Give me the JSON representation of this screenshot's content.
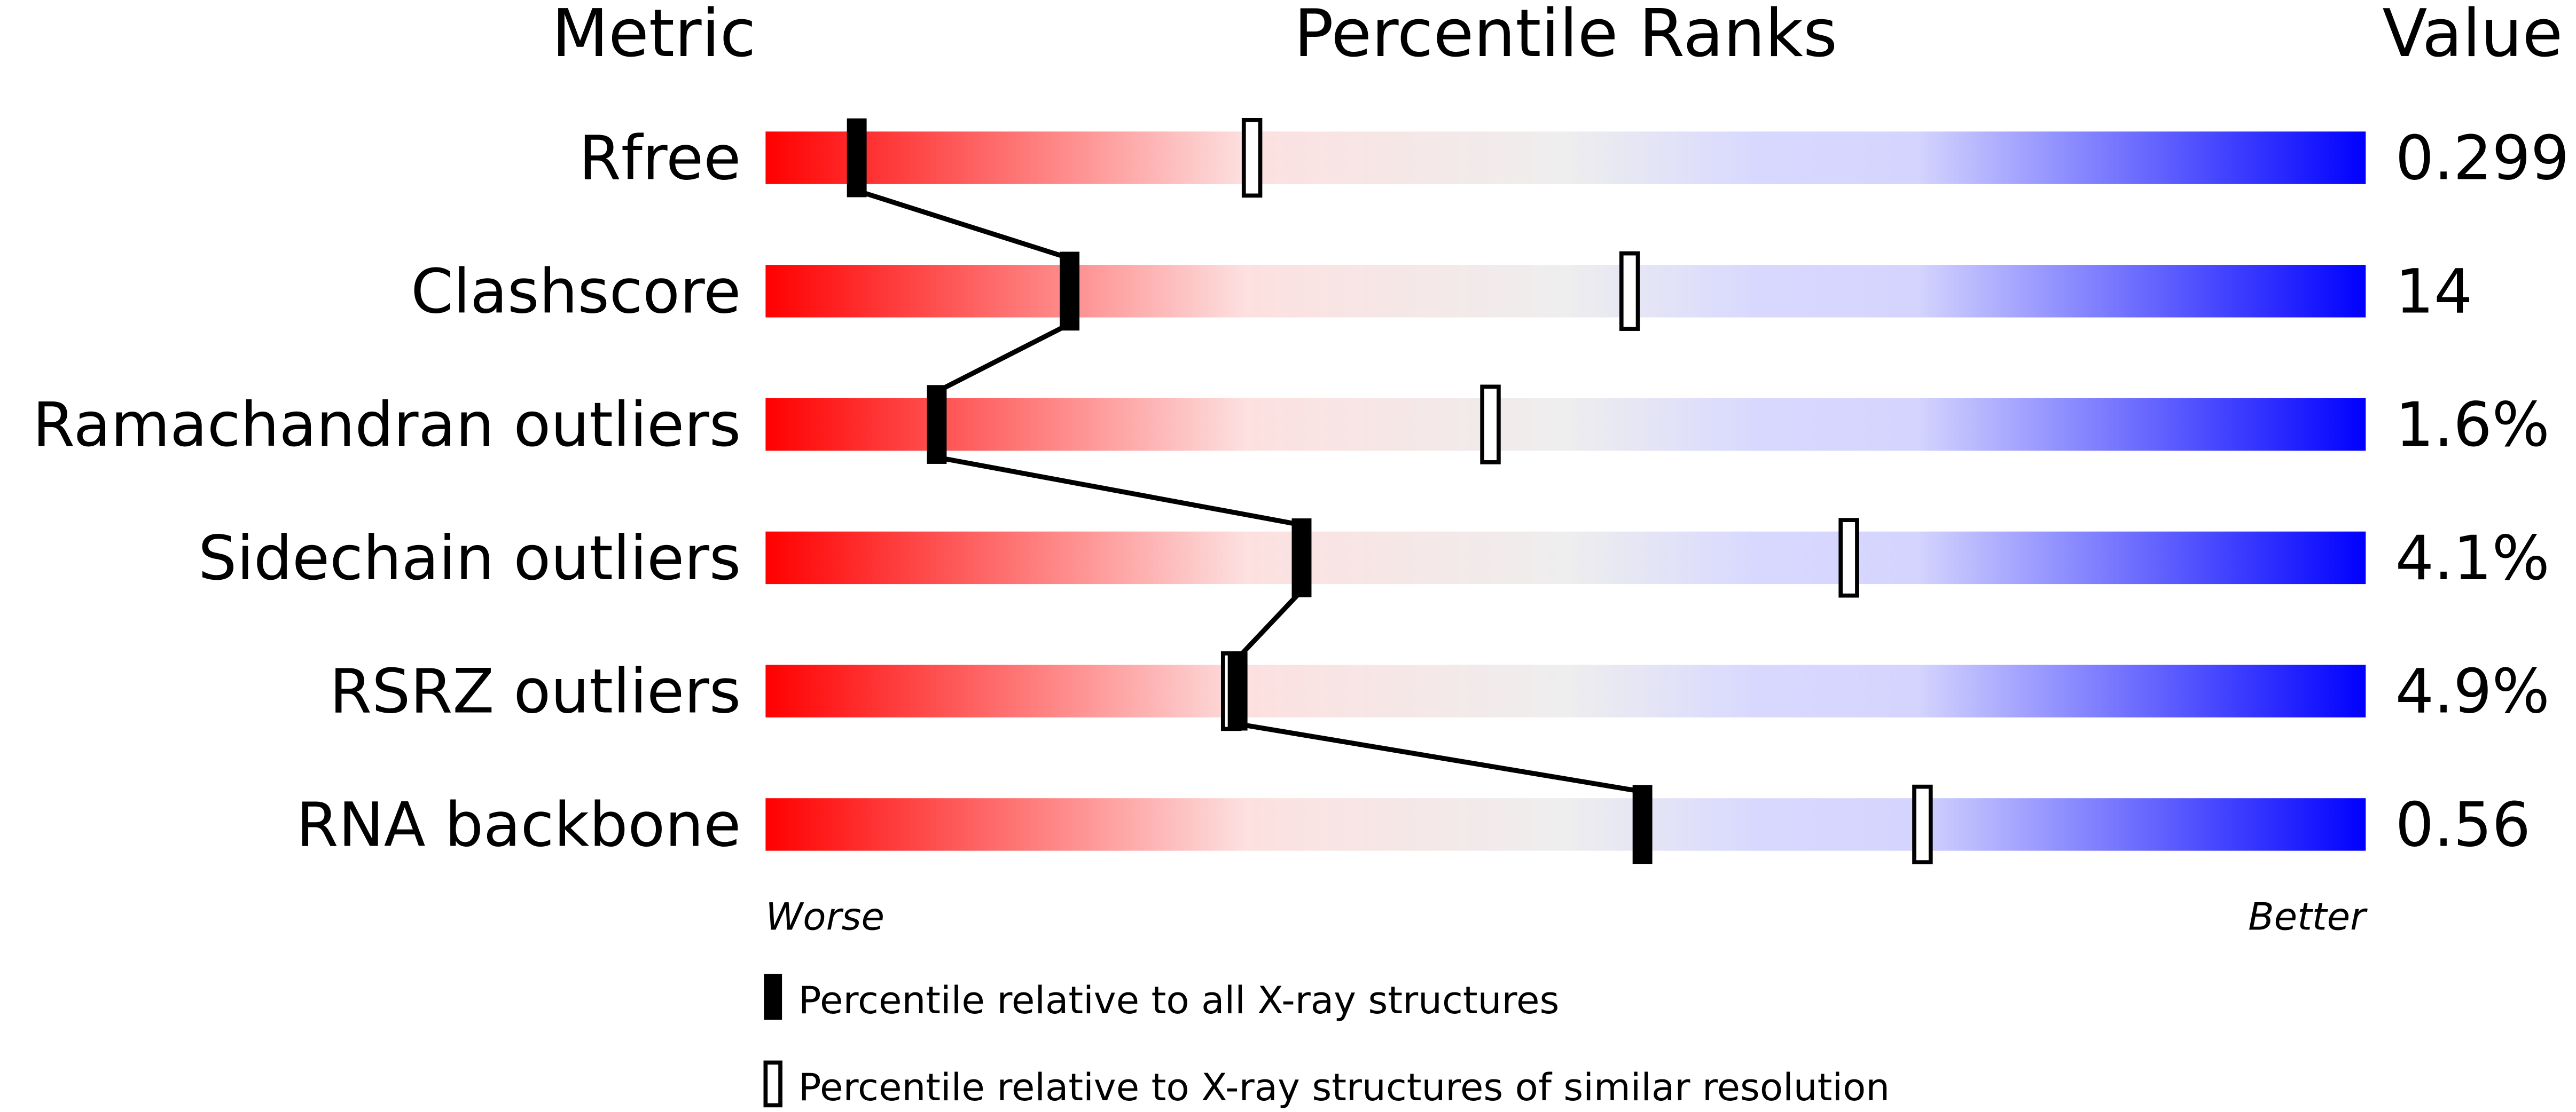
{
  "chart_data": {
    "type": "percentile-bars",
    "headers": {
      "metric": "Metric",
      "ranks": "Percentile Ranks",
      "value": "Value"
    },
    "xlim": [
      0,
      100
    ],
    "axis_labels": {
      "left": "Worse",
      "right": "Better"
    },
    "gradient_colors": [
      "#ff0000",
      "#fde0e0",
      "#eeeeee",
      "#d8d8ff",
      "#0000ff"
    ],
    "rows": [
      {
        "metric": "Rfree",
        "value": "0.299",
        "all_xray_percentile": 5.7,
        "similar_resolution_percentile": 30.4
      },
      {
        "metric": "Clashscore",
        "value": "14",
        "all_xray_percentile": 19.0,
        "similar_resolution_percentile": 54.0
      },
      {
        "metric": "Ramachandran outliers",
        "value": "1.6%",
        "all_xray_percentile": 10.7,
        "similar_resolution_percentile": 45.3
      },
      {
        "metric": "Sidechain outliers",
        "value": "4.1%",
        "all_xray_percentile": 33.5,
        "similar_resolution_percentile": 67.7
      },
      {
        "metric": "RSRZ outliers",
        "value": "4.9%",
        "all_xray_percentile": 29.5,
        "similar_resolution_percentile": 29.1
      },
      {
        "metric": "RNA backbone",
        "value": "0.56",
        "all_xray_percentile": 54.8,
        "similar_resolution_percentile": 72.3
      }
    ],
    "legend": [
      {
        "marker": "filled",
        "label": "Percentile relative to all X-ray structures"
      },
      {
        "marker": "open",
        "label": "Percentile relative to X-ray structures of similar resolution"
      }
    ]
  }
}
